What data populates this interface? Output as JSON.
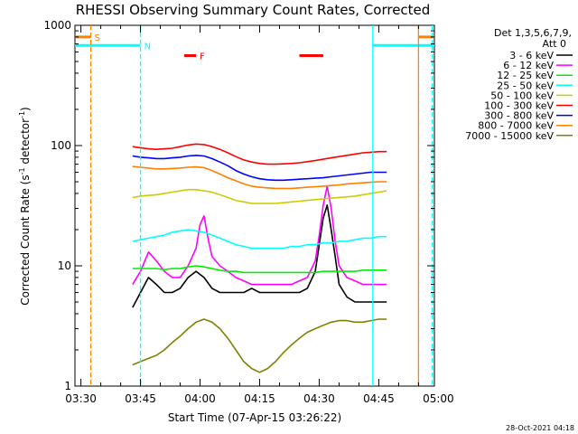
{
  "chart_data": {
    "type": "line",
    "title": "RHESSI Observing Summary Count Rates, Corrected",
    "xlabel": "Start Time (07-Apr-15 03:26:22)",
    "ylabel": "Corrected Count Rate (s⁻¹ detector⁻¹)",
    "ylabel_main": "Corrected Count Rate (s",
    "ylabel_sup1": "-1",
    "ylabel_mid": " detector",
    "ylabel_sup2": "-1",
    "ylabel_end": ")",
    "y_scale": "log",
    "ylim": [
      1,
      1000
    ],
    "xlim_minutes": [
      -31.5,
      59
    ],
    "x_ticks": [
      {
        "minute": -30,
        "label": "03:30"
      },
      {
        "minute": -15,
        "label": "03:45"
      },
      {
        "minute": 0,
        "label": "04:00"
      },
      {
        "minute": 15,
        "label": "04:15"
      },
      {
        "minute": 30,
        "label": "04:30"
      },
      {
        "minute": 45,
        "label": "04:45"
      },
      {
        "minute": 60,
        "label": "05:00"
      }
    ],
    "y_ticks": [
      {
        "value": 1,
        "label": "1"
      },
      {
        "value": 10,
        "label": "10"
      },
      {
        "value": 100,
        "label": "100"
      },
      {
        "value": 1000,
        "label": "1000"
      }
    ],
    "legend_position": "top-right",
    "legend_header_1": "Det 1,3,5,6,7,9,",
    "legend_header_2": "Att 0",
    "series": [
      {
        "name": "3 - 6 keV",
        "color": "#000000",
        "x": [
          -17,
          -15,
          -13,
          -11,
          -9,
          -7,
          -5,
          -3,
          -1,
          1,
          3,
          5,
          7,
          9,
          11,
          13,
          15,
          17,
          19,
          21,
          23,
          25,
          27,
          29,
          30,
          31,
          32,
          33,
          34,
          35,
          37,
          39,
          41,
          43,
          45,
          47
        ],
        "y": [
          4.5,
          6,
          8,
          7,
          6,
          6,
          6.5,
          8,
          9,
          8,
          6.5,
          6,
          6,
          6,
          6,
          6.5,
          6,
          6,
          6,
          6,
          6,
          6,
          6.5,
          9,
          15,
          25,
          32,
          20,
          12,
          7,
          5.5,
          5,
          5,
          5,
          5,
          5
        ]
      },
      {
        "name": "6 - 12 keV",
        "color": "#ff00ff",
        "x": [
          -17,
          -15,
          -13,
          -11,
          -9,
          -7,
          -5,
          -3,
          -1,
          0,
          1,
          2,
          3,
          5,
          7,
          9,
          11,
          13,
          15,
          17,
          19,
          21,
          23,
          25,
          27,
          29,
          30,
          31,
          32,
          33,
          34,
          35,
          37,
          39,
          41,
          43,
          45,
          47
        ],
        "y": [
          7,
          9,
          13,
          11,
          9,
          8,
          8,
          10,
          14,
          22,
          26,
          17,
          12,
          10,
          9,
          8,
          7.5,
          7,
          7,
          7,
          7,
          7,
          7,
          7.5,
          8,
          11,
          18,
          32,
          46,
          30,
          16,
          10,
          8,
          7.5,
          7,
          7,
          7,
          7
        ]
      },
      {
        "name": "12 - 25 keV",
        "color": "#00ee00",
        "x": [
          -17,
          -15,
          -13,
          -11,
          -9,
          -7,
          -5,
          -3,
          -1,
          1,
          3,
          5,
          7,
          9,
          11,
          13,
          15,
          17,
          19,
          21,
          23,
          25,
          27,
          29,
          31,
          33,
          35,
          37,
          39,
          41,
          43,
          45,
          47
        ],
        "y": [
          9.5,
          9.5,
          9.5,
          9.5,
          9.3,
          9.5,
          9.5,
          9.8,
          10,
          9.8,
          9.5,
          9.2,
          9,
          9,
          8.8,
          8.8,
          8.8,
          8.8,
          8.8,
          8.8,
          8.8,
          8.8,
          8.8,
          8.8,
          9,
          9,
          9,
          9,
          9,
          9.2,
          9.2,
          9.2,
          9.2
        ]
      },
      {
        "name": "25 - 50 keV",
        "color": "#00ffff",
        "x": [
          -17,
          -15,
          -13,
          -11,
          -9,
          -7,
          -5,
          -3,
          -1,
          1,
          3,
          5,
          7,
          9,
          11,
          13,
          15,
          17,
          19,
          21,
          23,
          25,
          27,
          29,
          31,
          33,
          35,
          37,
          39,
          41,
          43,
          45,
          47
        ],
        "y": [
          16,
          16.5,
          17,
          17.5,
          18,
          19,
          19.5,
          20,
          19.5,
          19,
          18,
          17,
          16,
          15,
          14.5,
          14,
          14,
          14,
          14,
          14,
          14.5,
          14.5,
          15,
          15,
          15.5,
          15.5,
          16,
          16,
          16.5,
          17,
          17,
          17.5,
          17.5
        ]
      },
      {
        "name": "50 - 100 keV",
        "color": "#cccc00",
        "x": [
          -17,
          -15,
          -13,
          -11,
          -9,
          -7,
          -5,
          -3,
          -1,
          1,
          3,
          5,
          7,
          9,
          11,
          13,
          15,
          17,
          19,
          21,
          23,
          25,
          27,
          29,
          31,
          33,
          35,
          37,
          39,
          41,
          43,
          45,
          47
        ],
        "y": [
          37,
          38,
          38.5,
          39,
          40,
          41,
          42,
          43,
          43,
          42,
          41,
          39,
          37,
          35,
          34,
          33,
          33,
          33,
          33,
          33.5,
          34,
          34.5,
          35,
          35.5,
          36,
          36.5,
          37,
          37.5,
          38,
          39,
          40,
          41,
          42
        ]
      },
      {
        "name": "100 - 300 keV",
        "color": "#ff0000",
        "x": [
          -17,
          -15,
          -13,
          -11,
          -9,
          -7,
          -5,
          -3,
          -1,
          1,
          3,
          5,
          7,
          9,
          11,
          13,
          15,
          17,
          19,
          21,
          23,
          25,
          27,
          29,
          31,
          33,
          35,
          37,
          39,
          41,
          43,
          45,
          47
        ],
        "y": [
          98,
          96,
          94,
          93,
          94,
          95,
          98,
          101,
          103,
          102,
          98,
          93,
          87,
          81,
          76,
          73,
          71,
          70,
          70,
          70.5,
          71,
          72,
          73.5,
          75,
          77,
          79,
          81,
          83,
          85,
          87,
          88,
          89,
          89
        ]
      },
      {
        "name": "300 - 800 keV",
        "color": "#0000ff",
        "x": [
          -17,
          -15,
          -13,
          -11,
          -9,
          -7,
          -5,
          -3,
          -1,
          1,
          3,
          5,
          7,
          9,
          11,
          13,
          15,
          17,
          19,
          21,
          23,
          25,
          27,
          29,
          31,
          33,
          35,
          37,
          39,
          41,
          43,
          45,
          47
        ],
        "y": [
          82,
          80,
          79,
          78,
          78,
          79,
          80,
          82,
          83,
          82,
          78,
          73,
          68,
          62,
          58,
          55,
          53,
          52,
          51.5,
          51.5,
          52,
          52.5,
          53,
          53.5,
          54,
          55,
          56,
          57,
          58,
          59,
          60,
          60,
          60
        ]
      },
      {
        "name": "800 - 7000 keV",
        "color": "#ff7f00",
        "x": [
          -17,
          -15,
          -13,
          -11,
          -9,
          -7,
          -5,
          -3,
          -1,
          1,
          3,
          5,
          7,
          9,
          11,
          13,
          15,
          17,
          19,
          21,
          23,
          25,
          27,
          29,
          31,
          33,
          35,
          37,
          39,
          41,
          43,
          45,
          47
        ],
        "y": [
          67,
          66,
          65,
          64,
          64,
          64.5,
          65,
          66,
          66.5,
          65.5,
          62,
          58,
          54,
          51,
          48,
          46,
          45,
          44.5,
          44,
          44,
          44,
          44.5,
          45,
          45.5,
          46,
          46.5,
          47,
          48,
          48.5,
          49,
          49.5,
          50,
          50
        ]
      },
      {
        "name": "7000 - 15000 keV",
        "color": "#808000",
        "x": [
          -17,
          -15,
          -13,
          -11,
          -9,
          -7,
          -5,
          -3,
          -1,
          1,
          3,
          5,
          7,
          9,
          11,
          13,
          15,
          17,
          19,
          21,
          23,
          25,
          27,
          29,
          31,
          33,
          35,
          37,
          39,
          41,
          43,
          45,
          47
        ],
        "y": [
          1.5,
          1.6,
          1.7,
          1.8,
          2,
          2.3,
          2.6,
          3,
          3.4,
          3.6,
          3.4,
          3,
          2.5,
          2,
          1.6,
          1.4,
          1.3,
          1.4,
          1.6,
          1.9,
          2.2,
          2.5,
          2.8,
          3,
          3.2,
          3.4,
          3.5,
          3.5,
          3.4,
          3.4,
          3.5,
          3.6,
          3.6
        ]
      }
    ],
    "intervals": [
      {
        "label": "S",
        "color": "#ff7f00",
        "start": -31.5,
        "end": -27.5,
        "level": 800
      },
      {
        "label": "N",
        "color": "#00ffff",
        "start": -31.5,
        "end": -15,
        "level": 680
      },
      {
        "label": "F",
        "color": "#ff0000",
        "start": -4,
        "end": -1,
        "level": 560
      },
      {
        "label": "",
        "color": "#ff0000",
        "start": 25,
        "end": 31,
        "level": 560
      },
      {
        "label": "",
        "color": "#00ffff",
        "start": 43.5,
        "end": 59,
        "level": 680
      },
      {
        "label": "",
        "color": "#ff7f00",
        "start": 55,
        "end": 59,
        "level": 800
      }
    ],
    "vlines": [
      {
        "minute": -27.5,
        "color": "#ff7f00",
        "style": "dashed"
      },
      {
        "minute": -15,
        "color": "#00ffff",
        "style": "dashed"
      },
      {
        "minute": 43.5,
        "color": "#00ffff",
        "style": "solid"
      },
      {
        "minute": 55,
        "color": "#ff7f00",
        "style": "solid"
      },
      {
        "minute": 58.5,
        "color": "#00ffff",
        "style": "dashed"
      }
    ]
  },
  "footer_timestamp": "28-Oct-2021 04:18"
}
